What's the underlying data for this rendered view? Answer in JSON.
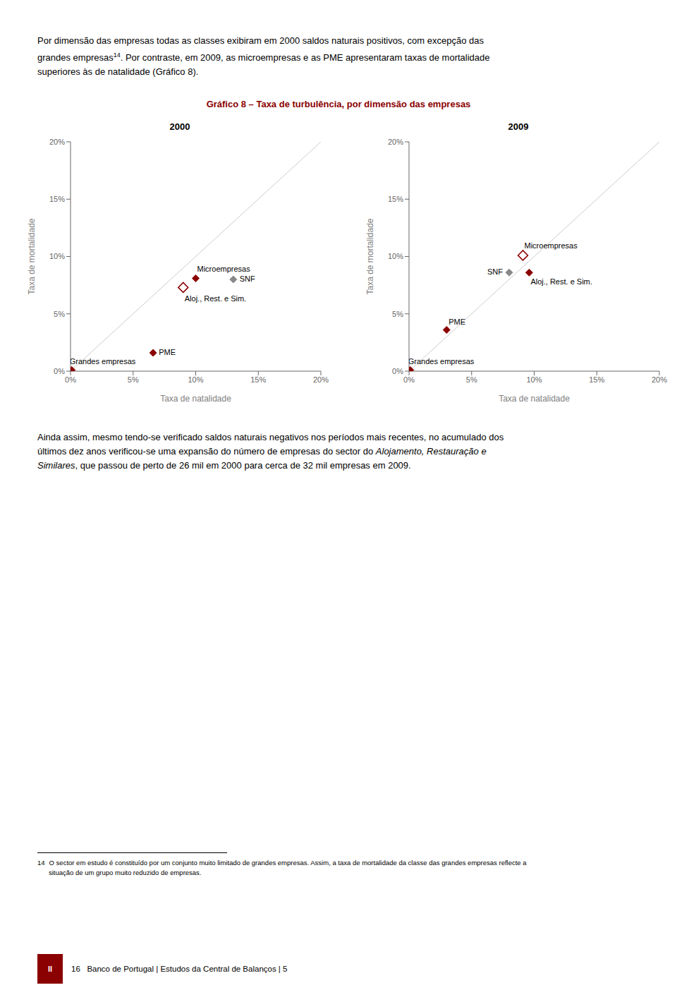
{
  "title": "Gráfico 8 – Taxa de turbulência, por dimensão das empresas",
  "title_color": "#8B0000",
  "para1_line1": "Por dimensão das empresas todas as classes exibiram em 2000 saldos naturais positivos, com excepção das",
  "para1_line2": "grandes empresas",
  "para1_fn": "14",
  "para1_line2b": ". Por contraste, em 2009, as microempresas e as PME apresentaram taxas de mortalidade",
  "para1_line3": "superiores às de natalidade (Gráfico 8).",
  "para2_line1": "Ainda assim, mesmo tendo-se verificado saldos naturais negativos nos períodos mais recentes, no acumulado dos",
  "para2_line2_start": "últimos dez anos verificou-se uma expansão do número de empresas do sector do ",
  "para2_line2_italic": "Alojamento, Restauração e",
  "para2_line3_italic": "Similares",
  "para2_line3_end": ", que passou de perto de 26 mil em 2000 para cerca de 32 mil empresas em 2009.",
  "footnote_num": "14",
  "footnote_line1": "O sector em estudo é constituído por um conjunto muito limitado de grandes empresas. Assim, a taxa de mortalidade da classe das grandes empresas reflecte a",
  "footnote_line2": "situação de um grupo muito reduzido de empresas.",
  "page_label": "II",
  "page_label_color": "#8B0000",
  "page_text": "16   Banco de Portugal | Estudos da Central de Balanços | 5",
  "chart_data": [
    {
      "type": "scatter",
      "title": "2000",
      "xlabel": "Taxa de natalidade",
      "ylabel": "Taxa de mortalidade",
      "xlim": [
        0,
        0.2
      ],
      "ylim": [
        0,
        0.2
      ],
      "xticks": [
        {
          "value": 0,
          "label": "0%"
        },
        {
          "value": 0.05,
          "label": "5%"
        },
        {
          "value": 0.1,
          "label": "10%"
        },
        {
          "value": 0.15,
          "label": "15%"
        },
        {
          "value": 0.2,
          "label": "20%"
        }
      ],
      "yticks": [
        {
          "value": 0,
          "label": "0%"
        },
        {
          "value": 0.05,
          "label": "5%"
        },
        {
          "value": 0.1,
          "label": "10%"
        },
        {
          "value": 0.15,
          "label": "15%"
        },
        {
          "value": 0.2,
          "label": "20%"
        }
      ],
      "grid": false,
      "points": [
        {
          "label": "Grandes empresas",
          "x": 0.001,
          "y": 0.001,
          "color": "#8B0000",
          "marker": "diamond"
        },
        {
          "label": "PME",
          "x": 0.066,
          "y": 0.016,
          "color": "#8B0000",
          "marker": "diamond"
        },
        {
          "label": "Microempresas",
          "x": 0.1,
          "y": 0.081,
          "color": "#8B0000",
          "marker": "diamond"
        },
        {
          "label": "Aloj., Rest. e Sim.",
          "x": 0.09,
          "y": 0.073,
          "color": "#8B0000",
          "marker": "diamond_open"
        },
        {
          "label": "SNF",
          "x": 0.13,
          "y": 0.08,
          "color": "#888888",
          "marker": "diamond"
        }
      ]
    },
    {
      "type": "scatter",
      "title": "2009",
      "xlabel": "Taxa de natalidade",
      "ylabel": "Taxa de mortalidade",
      "xlim": [
        0,
        0.2
      ],
      "ylim": [
        0,
        0.2
      ],
      "xticks": [
        {
          "value": 0,
          "label": "0%"
        },
        {
          "value": 0.05,
          "label": "5%"
        },
        {
          "value": 0.1,
          "label": "10%"
        },
        {
          "value": 0.15,
          "label": "15%"
        },
        {
          "value": 0.2,
          "label": "20%"
        }
      ],
      "yticks": [
        {
          "value": 0,
          "label": "0%"
        },
        {
          "value": 0.05,
          "label": "5%"
        },
        {
          "value": 0.1,
          "label": "10%"
        },
        {
          "value": 0.15,
          "label": "15%"
        },
        {
          "value": 0.2,
          "label": "20%"
        }
      ],
      "grid": false,
      "points": [
        {
          "label": "Grandes empresas",
          "x": 0.001,
          "y": 0.001,
          "color": "#8B0000",
          "marker": "diamond"
        },
        {
          "label": "PME",
          "x": 0.03,
          "y": 0.036,
          "color": "#8B0000",
          "marker": "diamond"
        },
        {
          "label": "Microempresas",
          "x": 0.091,
          "y": 0.101,
          "color": "#8B0000",
          "marker": "diamond_open"
        },
        {
          "label": "Aloj., Rest. e Sim.",
          "x": 0.096,
          "y": 0.086,
          "color": "#8B0000",
          "marker": "diamond"
        },
        {
          "label": "SNF",
          "x": 0.08,
          "y": 0.086,
          "color": "#888888",
          "marker": "diamond"
        }
      ]
    }
  ]
}
